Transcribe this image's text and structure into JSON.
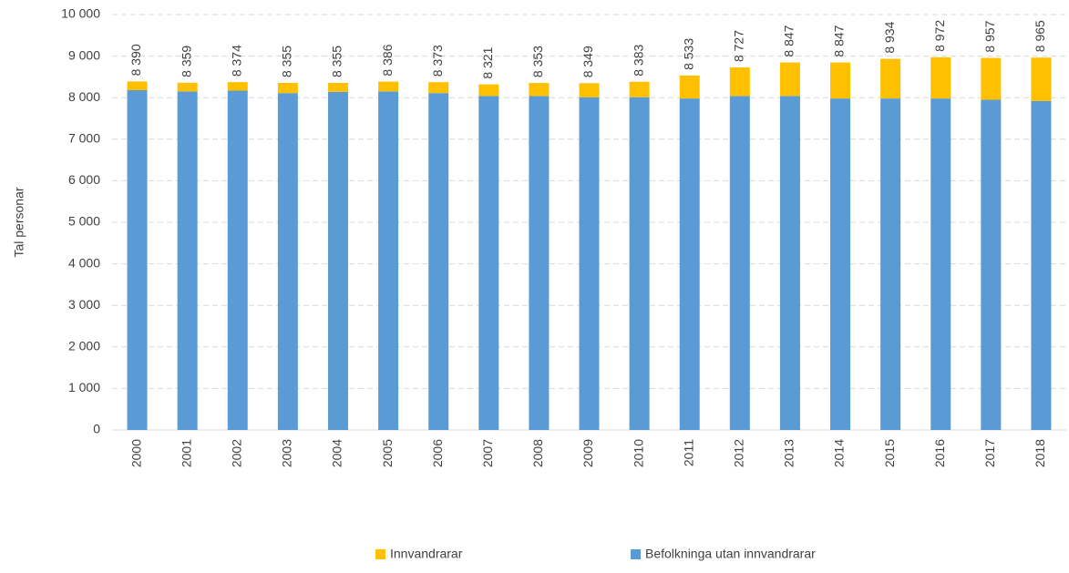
{
  "chart_data": {
    "type": "stacked_bar",
    "y_label": "Tal personar",
    "categories": [
      "2000",
      "2001",
      "2002",
      "2003",
      "2004",
      "2005",
      "2006",
      "2007",
      "2008",
      "2009",
      "2010",
      "2011",
      "2012",
      "2013",
      "2014",
      "2015",
      "2016",
      "2017",
      "2018"
    ],
    "series": [
      {
        "name": "Befolkninga utan innvandrarar",
        "color": "#5b9bd5",
        "values": [
          8180,
          8150,
          8170,
          8110,
          8140,
          8150,
          8110,
          8040,
          8040,
          8010,
          8010,
          7980,
          8040,
          8040,
          7980,
          7980,
          7980,
          7950,
          7920
        ]
      },
      {
        "name": "Innvandrarar",
        "color": "#ffc000",
        "values": [
          210,
          209,
          204,
          245,
          215,
          236,
          263,
          281,
          313,
          339,
          373,
          553,
          687,
          807,
          867,
          954,
          992,
          1007,
          1045
        ]
      }
    ],
    "totals": [
      8390,
      8359,
      8374,
      8355,
      8355,
      8386,
      8373,
      8321,
      8353,
      8349,
      8383,
      8533,
      8727,
      8847,
      8847,
      8934,
      8972,
      8957,
      8965
    ],
    "total_labels": [
      "8 390",
      "8 359",
      "8 374",
      "8 355",
      "8 355",
      "8 386",
      "8 373",
      "8 321",
      "8 353",
      "8 349",
      "8 383",
      "8 533",
      "8 727",
      "8 847",
      "8 847",
      "8 934",
      "8 972",
      "8 957",
      "8 965"
    ],
    "ylim": [
      0,
      10000
    ],
    "yticks": [
      0,
      {
        "value": 1000,
        "label": "1 000"
      },
      {
        "value": 2000,
        "label": "2 000"
      },
      {
        "value": 3000,
        "label": "3 000"
      },
      {
        "value": 4000,
        "label": "4 000"
      },
      {
        "value": 5000,
        "label": "5 000"
      },
      {
        "value": 6000,
        "label": "6 000"
      },
      {
        "value": 7000,
        "label": "7 000"
      },
      {
        "value": 8000,
        "label": "8 000"
      },
      {
        "value": 9000,
        "label": "9 000"
      },
      {
        "value": 10000,
        "label": "10 000"
      }
    ],
    "grid": true
  }
}
